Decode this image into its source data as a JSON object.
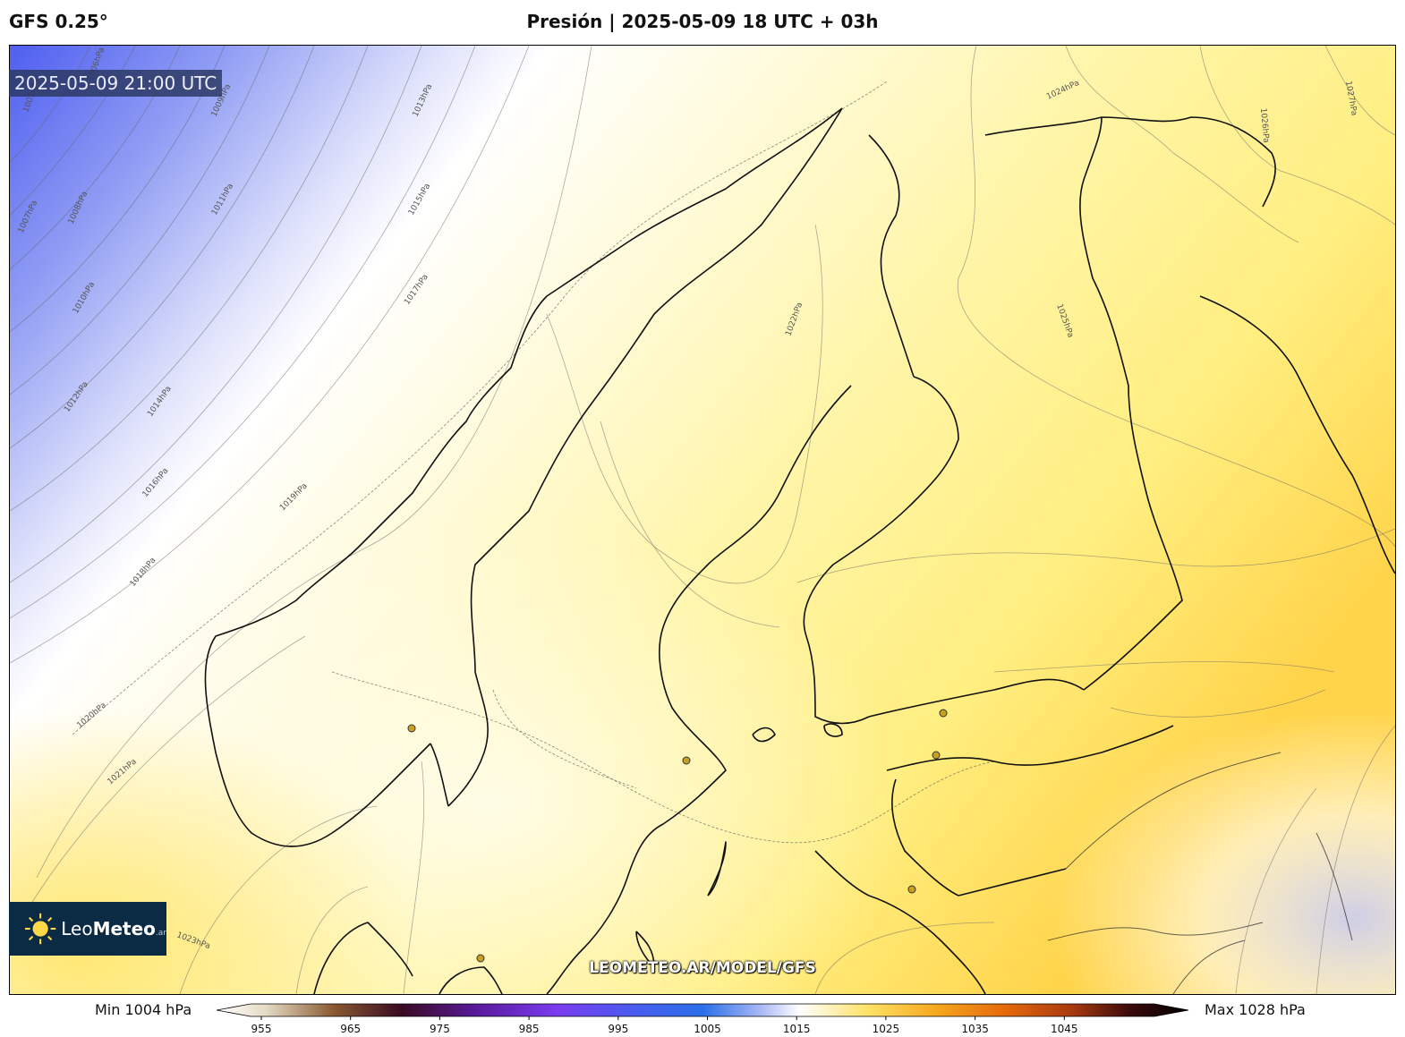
{
  "header": {
    "model": "GFS 0.25°",
    "title": "Presión | 2025-05-09 18 UTC + 03h"
  },
  "valid_time": "2025-05-09 21:00 UTC",
  "brand": {
    "name_light": "Leo",
    "name_bold": "Meteo",
    "suffix": ".ar"
  },
  "watermark": "LEOMETEO.AR/MODEL/GFS",
  "colorbar": {
    "min_label": "Min 1004 hPa",
    "max_label": "Max 1028 hPa",
    "ticks": [
      "955",
      "965",
      "975",
      "985",
      "995",
      "1005",
      "1015",
      "1025",
      "1035",
      "1045"
    ]
  },
  "isobar_labels": [
    "1005hPa",
    "1006hPa",
    "1007hPa",
    "1008hPa",
    "1009hPa",
    "1010hPa",
    "1011hPa",
    "1012hPa",
    "1013hPa",
    "1014hPa",
    "1015hPa",
    "1016hPa",
    "1017hPa",
    "1018hPa",
    "1019hPa",
    "1020hPa",
    "1021hPa",
    "1022hPa",
    "1023hPa",
    "1024hPa",
    "1025hPa",
    "1026hPa",
    "1027hPa"
  ],
  "colors": {
    "low": "#5a6cf2",
    "mid": "#ffffff",
    "high": "#ffd54a",
    "badge": "#2d3a66",
    "logo_bg": "#0b2a44"
  }
}
